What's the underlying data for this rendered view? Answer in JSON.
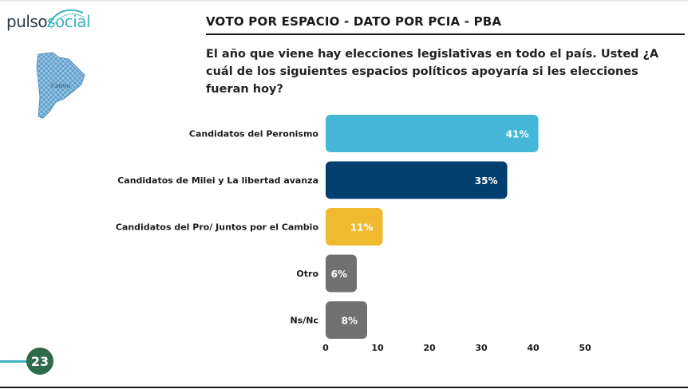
{
  "logo": {
    "word1": "pulso",
    "word2": "social",
    "map_label": "Caniro"
  },
  "header": {
    "title": "VOTO POR ESPACIO - DATO POR PCIA - PBA",
    "question": "El año que viene hay elecciones legislativas en todo el país. Usted ¿A cuál de los siguientes espacios políticos apoyaría si les elecciones fueran hoy?"
  },
  "page": {
    "number": "23"
  },
  "colors": {
    "peronismo": "#45b8d9",
    "milei": "#003f6e",
    "pro": "#f0ba30",
    "other": "#707070",
    "accent": "#3cb3c2"
  },
  "chart_data": {
    "type": "bar",
    "orientation": "horizontal",
    "title": "",
    "xlabel": "",
    "ylabel": "",
    "categories": [
      "Candidatos del Peronismo",
      "Candidatos de Milei y La libertad avanza",
      "Candidatos del Pro/ Juntos por el Cambio",
      "Otro",
      "Ns/Nc"
    ],
    "values": [
      41,
      35,
      11,
      6,
      8
    ],
    "data_labels": [
      "41%",
      "35%",
      "11%",
      "6%",
      "8%"
    ],
    "bar_colors": [
      "#45b8d9",
      "#003f6e",
      "#f0ba30",
      "#707070",
      "#707070"
    ],
    "label_colors": [
      "#ffffff",
      "#ffffff",
      "#ffffff",
      "#ffffff",
      "#ffffff"
    ],
    "xlim": [
      0,
      50
    ],
    "ticks": [
      0,
      10,
      20,
      30,
      40,
      50
    ],
    "grid": false,
    "legend": "none"
  }
}
